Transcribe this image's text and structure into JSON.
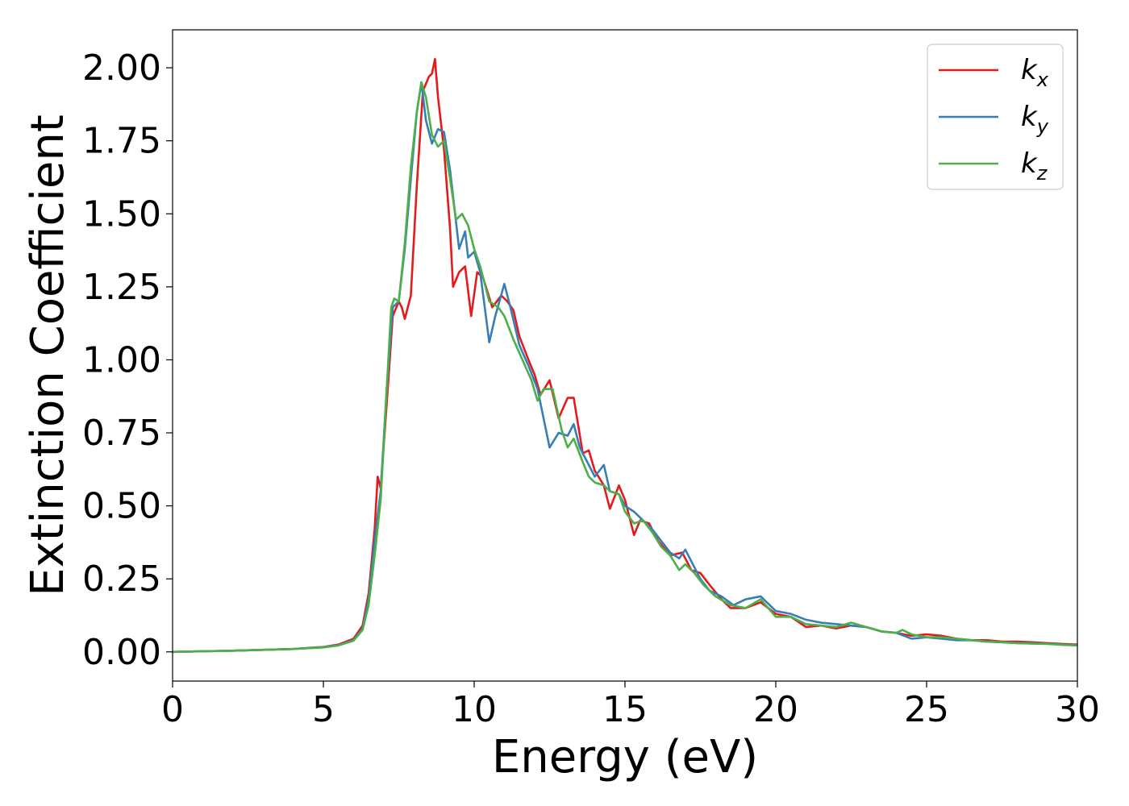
{
  "chart_data": {
    "type": "line",
    "title": "",
    "xlabel": "Energy (eV)",
    "ylabel": "Extinction Coefficient",
    "xlim": [
      0,
      30
    ],
    "ylim": [
      -0.1,
      2.13
    ],
    "xticks": [
      0,
      5,
      10,
      15,
      20,
      25,
      30
    ],
    "xtick_labels": [
      "0",
      "5",
      "10",
      "15",
      "20",
      "25",
      "30"
    ],
    "yticks": [
      0,
      0.25,
      0.5,
      0.75,
      1.0,
      1.25,
      1.5,
      1.75,
      2.0
    ],
    "ytick_labels": [
      "0.00",
      "0.25",
      "0.50",
      "0.75",
      "1.00",
      "1.25",
      "1.50",
      "1.75",
      "2.00"
    ],
    "grid": false,
    "legend_position": "top-right",
    "series": [
      {
        "name": "k_x",
        "label_base": "k",
        "label_sub": "x",
        "color": "#e41a1c",
        "points": [
          [
            0,
            0.0
          ],
          [
            2,
            0.004
          ],
          [
            4,
            0.01
          ],
          [
            5,
            0.017
          ],
          [
            5.5,
            0.025
          ],
          [
            6,
            0.045
          ],
          [
            6.3,
            0.09
          ],
          [
            6.5,
            0.2
          ],
          [
            6.7,
            0.42
          ],
          [
            6.8,
            0.6
          ],
          [
            6.9,
            0.56
          ],
          [
            7.1,
            0.85
          ],
          [
            7.3,
            1.15
          ],
          [
            7.5,
            1.2
          ],
          [
            7.6,
            1.18
          ],
          [
            7.7,
            1.14
          ],
          [
            7.9,
            1.22
          ],
          [
            8.1,
            1.6
          ],
          [
            8.3,
            1.92
          ],
          [
            8.5,
            1.97
          ],
          [
            8.6,
            1.98
          ],
          [
            8.7,
            2.03
          ],
          [
            8.8,
            1.9
          ],
          [
            9.0,
            1.72
          ],
          [
            9.2,
            1.45
          ],
          [
            9.3,
            1.25
          ],
          [
            9.5,
            1.3
          ],
          [
            9.7,
            1.32
          ],
          [
            9.9,
            1.15
          ],
          [
            10.1,
            1.3
          ],
          [
            10.3,
            1.28
          ],
          [
            10.6,
            1.18
          ],
          [
            10.9,
            1.22
          ],
          [
            11.1,
            1.2
          ],
          [
            11.3,
            1.17
          ],
          [
            11.5,
            1.08
          ],
          [
            11.8,
            1.0
          ],
          [
            12.0,
            0.95
          ],
          [
            12.2,
            0.88
          ],
          [
            12.5,
            0.93
          ],
          [
            12.8,
            0.8
          ],
          [
            13.1,
            0.87
          ],
          [
            13.3,
            0.87
          ],
          [
            13.6,
            0.68
          ],
          [
            13.8,
            0.69
          ],
          [
            14.0,
            0.62
          ],
          [
            14.3,
            0.57
          ],
          [
            14.5,
            0.49
          ],
          [
            14.8,
            0.57
          ],
          [
            15.0,
            0.52
          ],
          [
            15.3,
            0.4
          ],
          [
            15.5,
            0.45
          ],
          [
            15.8,
            0.44
          ],
          [
            16.1,
            0.38
          ],
          [
            16.5,
            0.33
          ],
          [
            16.9,
            0.34
          ],
          [
            17.2,
            0.28
          ],
          [
            17.5,
            0.27
          ],
          [
            17.8,
            0.23
          ],
          [
            18.2,
            0.18
          ],
          [
            18.5,
            0.15
          ],
          [
            19.0,
            0.15
          ],
          [
            19.5,
            0.17
          ],
          [
            20.0,
            0.13
          ],
          [
            20.5,
            0.12
          ],
          [
            21.0,
            0.085
          ],
          [
            21.5,
            0.09
          ],
          [
            22.0,
            0.08
          ],
          [
            22.5,
            0.09
          ],
          [
            23.0,
            0.085
          ],
          [
            23.5,
            0.07
          ],
          [
            24.0,
            0.065
          ],
          [
            24.5,
            0.055
          ],
          [
            25.0,
            0.06
          ],
          [
            25.5,
            0.055
          ],
          [
            26.0,
            0.045
          ],
          [
            26.5,
            0.04
          ],
          [
            27.0,
            0.04
          ],
          [
            27.5,
            0.035
          ],
          [
            28.0,
            0.035
          ],
          [
            28.5,
            0.033
          ],
          [
            29.0,
            0.03
          ],
          [
            29.5,
            0.027
          ],
          [
            30.0,
            0.025
          ]
        ]
      },
      {
        "name": "k_y",
        "label_base": "k",
        "label_sub": "y",
        "color": "#377eb8",
        "points": [
          [
            0,
            0.0
          ],
          [
            2,
            0.004
          ],
          [
            4,
            0.01
          ],
          [
            5,
            0.016
          ],
          [
            5.5,
            0.023
          ],
          [
            6,
            0.04
          ],
          [
            6.3,
            0.08
          ],
          [
            6.5,
            0.18
          ],
          [
            6.7,
            0.38
          ],
          [
            6.9,
            0.55
          ],
          [
            7.1,
            0.9
          ],
          [
            7.3,
            1.18
          ],
          [
            7.5,
            1.2
          ],
          [
            7.7,
            1.38
          ],
          [
            7.9,
            1.62
          ],
          [
            8.1,
            1.85
          ],
          [
            8.25,
            1.95
          ],
          [
            8.4,
            1.82
          ],
          [
            8.6,
            1.74
          ],
          [
            8.8,
            1.79
          ],
          [
            9.0,
            1.78
          ],
          [
            9.2,
            1.65
          ],
          [
            9.5,
            1.38
          ],
          [
            9.7,
            1.44
          ],
          [
            9.8,
            1.35
          ],
          [
            10.0,
            1.37
          ],
          [
            10.2,
            1.3
          ],
          [
            10.5,
            1.06
          ],
          [
            10.7,
            1.15
          ],
          [
            11.0,
            1.26
          ],
          [
            11.2,
            1.18
          ],
          [
            11.5,
            1.05
          ],
          [
            11.8,
            0.98
          ],
          [
            12.1,
            0.9
          ],
          [
            12.3,
            0.8
          ],
          [
            12.5,
            0.7
          ],
          [
            12.8,
            0.75
          ],
          [
            13.1,
            0.74
          ],
          [
            13.3,
            0.78
          ],
          [
            13.5,
            0.7
          ],
          [
            13.8,
            0.64
          ],
          [
            14.0,
            0.6
          ],
          [
            14.3,
            0.64
          ],
          [
            14.5,
            0.55
          ],
          [
            14.8,
            0.54
          ],
          [
            15.0,
            0.5
          ],
          [
            15.3,
            0.48
          ],
          [
            15.6,
            0.45
          ],
          [
            15.9,
            0.42
          ],
          [
            16.2,
            0.38
          ],
          [
            16.5,
            0.34
          ],
          [
            16.8,
            0.32
          ],
          [
            17.0,
            0.35
          ],
          [
            17.2,
            0.31
          ],
          [
            17.5,
            0.25
          ],
          [
            17.8,
            0.21
          ],
          [
            18.2,
            0.19
          ],
          [
            18.6,
            0.16
          ],
          [
            19.0,
            0.18
          ],
          [
            19.5,
            0.19
          ],
          [
            20.0,
            0.14
          ],
          [
            20.5,
            0.13
          ],
          [
            21.0,
            0.11
          ],
          [
            21.5,
            0.1
          ],
          [
            22.0,
            0.095
          ],
          [
            22.5,
            0.09
          ],
          [
            23.0,
            0.085
          ],
          [
            23.5,
            0.07
          ],
          [
            24.0,
            0.065
          ],
          [
            24.5,
            0.045
          ],
          [
            25.0,
            0.05
          ],
          [
            25.5,
            0.045
          ],
          [
            26.0,
            0.04
          ],
          [
            26.5,
            0.04
          ],
          [
            27.0,
            0.035
          ],
          [
            27.5,
            0.033
          ],
          [
            28.0,
            0.03
          ],
          [
            28.5,
            0.03
          ],
          [
            29.0,
            0.028
          ],
          [
            29.5,
            0.025
          ],
          [
            30.0,
            0.023
          ]
        ]
      },
      {
        "name": "k_z",
        "label_base": "k",
        "label_sub": "z",
        "color": "#4daf4a",
        "points": [
          [
            0,
            0.0
          ],
          [
            2,
            0.004
          ],
          [
            4,
            0.01
          ],
          [
            5,
            0.015
          ],
          [
            5.5,
            0.022
          ],
          [
            6,
            0.038
          ],
          [
            6.3,
            0.075
          ],
          [
            6.5,
            0.16
          ],
          [
            6.7,
            0.33
          ],
          [
            6.9,
            0.52
          ],
          [
            7.1,
            0.9
          ],
          [
            7.25,
            1.18
          ],
          [
            7.35,
            1.21
          ],
          [
            7.5,
            1.2
          ],
          [
            7.7,
            1.4
          ],
          [
            7.9,
            1.66
          ],
          [
            8.1,
            1.85
          ],
          [
            8.25,
            1.95
          ],
          [
            8.4,
            1.9
          ],
          [
            8.6,
            1.77
          ],
          [
            8.8,
            1.73
          ],
          [
            9.0,
            1.75
          ],
          [
            9.2,
            1.62
          ],
          [
            9.4,
            1.48
          ],
          [
            9.6,
            1.5
          ],
          [
            9.8,
            1.46
          ],
          [
            10.0,
            1.38
          ],
          [
            10.2,
            1.32
          ],
          [
            10.5,
            1.2
          ],
          [
            10.8,
            1.18
          ],
          [
            11.0,
            1.15
          ],
          [
            11.3,
            1.07
          ],
          [
            11.6,
            1.0
          ],
          [
            11.9,
            0.93
          ],
          [
            12.1,
            0.86
          ],
          [
            12.3,
            0.9
          ],
          [
            12.6,
            0.9
          ],
          [
            12.9,
            0.76
          ],
          [
            13.1,
            0.7
          ],
          [
            13.3,
            0.73
          ],
          [
            13.6,
            0.65
          ],
          [
            13.8,
            0.6
          ],
          [
            14.0,
            0.58
          ],
          [
            14.3,
            0.57
          ],
          [
            14.5,
            0.55
          ],
          [
            14.8,
            0.54
          ],
          [
            15.0,
            0.48
          ],
          [
            15.3,
            0.44
          ],
          [
            15.6,
            0.45
          ],
          [
            15.9,
            0.41
          ],
          [
            16.2,
            0.36
          ],
          [
            16.5,
            0.33
          ],
          [
            16.8,
            0.28
          ],
          [
            17.0,
            0.3
          ],
          [
            17.3,
            0.27
          ],
          [
            17.6,
            0.23
          ],
          [
            18.0,
            0.19
          ],
          [
            18.5,
            0.16
          ],
          [
            19.0,
            0.15
          ],
          [
            19.5,
            0.18
          ],
          [
            20.0,
            0.12
          ],
          [
            20.5,
            0.12
          ],
          [
            21.0,
            0.095
          ],
          [
            21.5,
            0.09
          ],
          [
            22.0,
            0.085
          ],
          [
            22.5,
            0.1
          ],
          [
            23.0,
            0.085
          ],
          [
            23.5,
            0.07
          ],
          [
            24.0,
            0.065
          ],
          [
            24.2,
            0.075
          ],
          [
            24.5,
            0.06
          ],
          [
            25.0,
            0.05
          ],
          [
            25.5,
            0.05
          ],
          [
            26.0,
            0.045
          ],
          [
            26.5,
            0.04
          ],
          [
            27.0,
            0.035
          ],
          [
            27.5,
            0.033
          ],
          [
            28.0,
            0.03
          ],
          [
            28.5,
            0.028
          ],
          [
            29.0,
            0.027
          ],
          [
            29.5,
            0.024
          ],
          [
            30.0,
            0.022
          ]
        ]
      }
    ]
  }
}
